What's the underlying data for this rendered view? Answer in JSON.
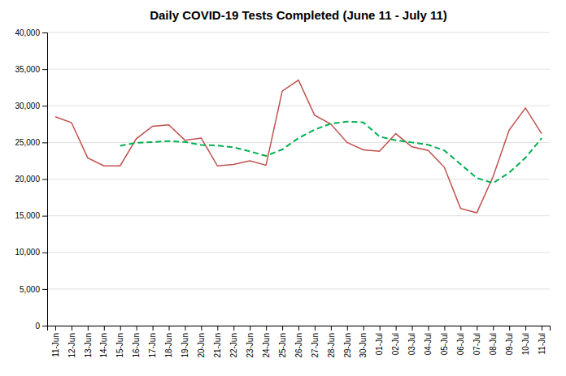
{
  "chart_data": {
    "type": "line",
    "title": "Daily COVID-19 Tests Completed (June 11 - July 11)",
    "categories": [
      "11-Jun",
      "12-Jun",
      "13-Jun",
      "14-Jun",
      "15-Jun",
      "16-Jun",
      "17-Jun",
      "18-Jun",
      "19-Jun",
      "20-Jun",
      "21-Jun",
      "22-Jun",
      "23-Jun",
      "24-Jun",
      "25-Jun",
      "26-Jun",
      "27-Jun",
      "28-Jun",
      "29-Jun",
      "30-Jun",
      "01-Jul",
      "02-Jul",
      "03-Jul",
      "04-Jul",
      "05-Jul",
      "06-Jul",
      "07-Jul",
      "08-Jul",
      "09-Jul",
      "10-Jul",
      "11-Jul"
    ],
    "series": [
      {
        "color": "#c0504d",
        "values": [
          28500,
          27700,
          22900,
          21800,
          21800,
          25500,
          27200,
          27400,
          25300,
          25600,
          21800,
          22000,
          22500,
          21900,
          32000,
          33500,
          28700,
          27500,
          25000,
          24000,
          23800,
          26200,
          24400,
          23900,
          21600,
          16000,
          15400,
          20300,
          26700,
          29700,
          26200
        ]
      },
      {
        "color": "#00b050",
        "line_style": "dashed",
        "values": [
          null,
          null,
          null,
          null,
          24540,
          24940,
          25040,
          25180,
          25060,
          24660,
          24580,
          24340,
          23780,
          23160,
          24040,
          25580,
          26740,
          27560,
          27840,
          27740,
          25800,
          25300,
          25000,
          24680,
          23900,
          22030,
          20140,
          19450,
          20880,
          22900,
          25580
        ]
      }
    ],
    "ylim": [
      0,
      40000
    ],
    "yticks": [
      0,
      {
        "value": 5000,
        "label": "5,000"
      },
      {
        "value": 10000,
        "label": "10,000"
      },
      {
        "value": 15000,
        "label": "15,000"
      },
      {
        "value": 20000,
        "label": "20,000"
      },
      {
        "value": 25000,
        "label": "25,000"
      },
      {
        "value": 30000,
        "label": "30,000"
      },
      {
        "value": 35000,
        "label": "35,000"
      },
      {
        "value": 40000,
        "label": "40,000"
      }
    ],
    "grid": true
  }
}
